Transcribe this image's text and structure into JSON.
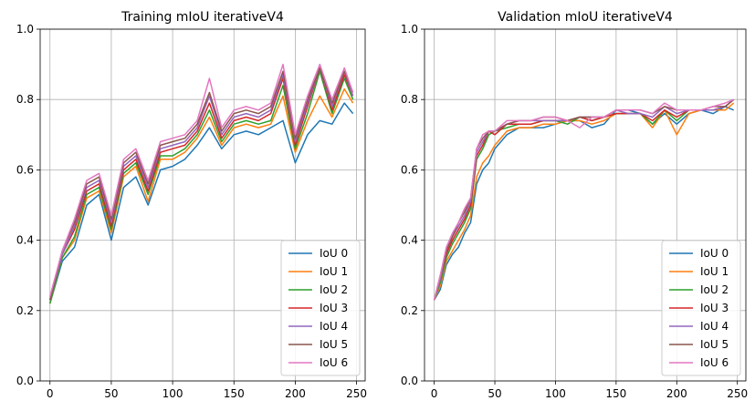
{
  "chart_data": [
    {
      "type": "line",
      "title": "Training mIoU iterativeV4",
      "xlabel": "",
      "ylabel": "",
      "xlim": [
        -8,
        257
      ],
      "ylim": [
        0,
        1
      ],
      "xticks": [
        0,
        50,
        100,
        150,
        200,
        250
      ],
      "yticks": [
        0.0,
        0.2,
        0.4,
        0.6,
        0.8,
        1.0
      ],
      "grid": true,
      "legend": "lower-right",
      "x": [
        0,
        10,
        20,
        30,
        40,
        50,
        60,
        70,
        80,
        90,
        100,
        110,
        120,
        130,
        140,
        150,
        160,
        170,
        180,
        190,
        200,
        210,
        220,
        230,
        240,
        247
      ],
      "series": [
        {
          "name": "IoU 0",
          "color": "#1f77b4",
          "values": [
            0.22,
            0.34,
            0.38,
            0.5,
            0.53,
            0.4,
            0.55,
            0.58,
            0.5,
            0.6,
            0.61,
            0.63,
            0.67,
            0.72,
            0.66,
            0.7,
            0.71,
            0.7,
            0.72,
            0.74,
            0.62,
            0.7,
            0.74,
            0.73,
            0.79,
            0.76
          ]
        },
        {
          "name": "IoU 1",
          "color": "#ff7f0e",
          "values": [
            0.22,
            0.35,
            0.4,
            0.52,
            0.54,
            0.42,
            0.58,
            0.61,
            0.51,
            0.63,
            0.63,
            0.65,
            0.69,
            0.75,
            0.67,
            0.72,
            0.73,
            0.72,
            0.73,
            0.81,
            0.65,
            0.74,
            0.81,
            0.75,
            0.83,
            0.79
          ]
        },
        {
          "name": "IoU 2",
          "color": "#2ca02c",
          "values": [
            0.22,
            0.35,
            0.41,
            0.53,
            0.55,
            0.43,
            0.59,
            0.62,
            0.53,
            0.64,
            0.64,
            0.66,
            0.7,
            0.77,
            0.68,
            0.73,
            0.74,
            0.73,
            0.74,
            0.84,
            0.66,
            0.76,
            0.88,
            0.76,
            0.86,
            0.8
          ]
        },
        {
          "name": "IoU 3",
          "color": "#d62728",
          "values": [
            0.23,
            0.36,
            0.43,
            0.54,
            0.56,
            0.44,
            0.6,
            0.63,
            0.54,
            0.65,
            0.66,
            0.67,
            0.71,
            0.79,
            0.69,
            0.74,
            0.75,
            0.74,
            0.76,
            0.86,
            0.67,
            0.78,
            0.89,
            0.77,
            0.87,
            0.81
          ]
        },
        {
          "name": "IoU 4",
          "color": "#9467bd",
          "values": [
            0.23,
            0.36,
            0.44,
            0.55,
            0.57,
            0.45,
            0.61,
            0.64,
            0.55,
            0.66,
            0.67,
            0.68,
            0.72,
            0.81,
            0.7,
            0.75,
            0.76,
            0.75,
            0.77,
            0.87,
            0.68,
            0.79,
            0.89,
            0.78,
            0.88,
            0.81
          ]
        },
        {
          "name": "IoU 5",
          "color": "#8c564b",
          "values": [
            0.23,
            0.37,
            0.45,
            0.56,
            0.58,
            0.46,
            0.62,
            0.65,
            0.56,
            0.67,
            0.68,
            0.69,
            0.73,
            0.82,
            0.71,
            0.76,
            0.77,
            0.76,
            0.78,
            0.88,
            0.69,
            0.8,
            0.89,
            0.79,
            0.88,
            0.82
          ]
        },
        {
          "name": "IoU 6",
          "color": "#e377c2",
          "values": [
            0.24,
            0.37,
            0.46,
            0.57,
            0.59,
            0.47,
            0.63,
            0.66,
            0.57,
            0.68,
            0.69,
            0.7,
            0.74,
            0.86,
            0.72,
            0.77,
            0.78,
            0.77,
            0.79,
            0.9,
            0.7,
            0.81,
            0.9,
            0.8,
            0.89,
            0.82
          ]
        }
      ]
    },
    {
      "type": "line",
      "title": "Validation mIoU iterativeV4",
      "xlabel": "",
      "ylabel": "",
      "xlim": [
        -8,
        257
      ],
      "ylim": [
        0,
        1
      ],
      "xticks": [
        0,
        50,
        100,
        150,
        200,
        250
      ],
      "yticks": [
        0.0,
        0.2,
        0.4,
        0.6,
        0.8,
        1.0
      ],
      "grid": true,
      "legend": "lower-right",
      "x": [
        0,
        5,
        10,
        15,
        20,
        25,
        30,
        35,
        40,
        45,
        50,
        60,
        70,
        80,
        90,
        100,
        110,
        120,
        130,
        140,
        150,
        160,
        170,
        180,
        190,
        200,
        210,
        220,
        230,
        240,
        247
      ],
      "series": [
        {
          "name": "IoU 0",
          "color": "#1f77b4",
          "values": [
            0.23,
            0.26,
            0.33,
            0.36,
            0.38,
            0.42,
            0.45,
            0.56,
            0.6,
            0.62,
            0.66,
            0.7,
            0.72,
            0.72,
            0.72,
            0.73,
            0.74,
            0.74,
            0.72,
            0.73,
            0.77,
            0.77,
            0.76,
            0.73,
            0.76,
            0.73,
            0.76,
            0.77,
            0.76,
            0.78,
            0.77
          ]
        },
        {
          "name": "IoU 1",
          "color": "#ff7f0e",
          "values": [
            0.23,
            0.27,
            0.34,
            0.37,
            0.4,
            0.43,
            0.47,
            0.58,
            0.62,
            0.64,
            0.67,
            0.71,
            0.72,
            0.72,
            0.73,
            0.73,
            0.74,
            0.74,
            0.73,
            0.74,
            0.76,
            0.76,
            0.76,
            0.72,
            0.77,
            0.7,
            0.76,
            0.77,
            0.77,
            0.77,
            0.79
          ]
        },
        {
          "name": "IoU 2",
          "color": "#2ca02c",
          "values": [
            0.23,
            0.28,
            0.35,
            0.39,
            0.42,
            0.45,
            0.49,
            0.63,
            0.66,
            0.7,
            0.71,
            0.72,
            0.73,
            0.73,
            0.74,
            0.74,
            0.73,
            0.75,
            0.74,
            0.75,
            0.76,
            0.76,
            0.76,
            0.73,
            0.77,
            0.74,
            0.77,
            0.77,
            0.77,
            0.78,
            0.8
          ]
        },
        {
          "name": "IoU 3",
          "color": "#d62728",
          "values": [
            0.23,
            0.29,
            0.36,
            0.4,
            0.43,
            0.46,
            0.5,
            0.64,
            0.67,
            0.71,
            0.7,
            0.73,
            0.73,
            0.73,
            0.74,
            0.74,
            0.74,
            0.75,
            0.74,
            0.75,
            0.76,
            0.76,
            0.76,
            0.74,
            0.77,
            0.75,
            0.77,
            0.77,
            0.77,
            0.78,
            0.8
          ]
        },
        {
          "name": "IoU 4",
          "color": "#9467bd",
          "values": [
            0.23,
            0.29,
            0.37,
            0.41,
            0.44,
            0.47,
            0.51,
            0.65,
            0.68,
            0.71,
            0.71,
            0.73,
            0.74,
            0.74,
            0.74,
            0.74,
            0.74,
            0.75,
            0.75,
            0.75,
            0.77,
            0.76,
            0.76,
            0.75,
            0.78,
            0.76,
            0.77,
            0.77,
            0.77,
            0.78,
            0.8
          ]
        },
        {
          "name": "IoU 5",
          "color": "#8c564b",
          "values": [
            0.23,
            0.3,
            0.37,
            0.41,
            0.45,
            0.48,
            0.52,
            0.66,
            0.69,
            0.71,
            0.71,
            0.73,
            0.74,
            0.74,
            0.75,
            0.75,
            0.74,
            0.75,
            0.75,
            0.75,
            0.77,
            0.77,
            0.77,
            0.76,
            0.78,
            0.77,
            0.77,
            0.77,
            0.78,
            0.78,
            0.8
          ]
        },
        {
          "name": "IoU 6",
          "color": "#e377c2",
          "values": [
            0.23,
            0.3,
            0.38,
            0.42,
            0.45,
            0.49,
            0.52,
            0.66,
            0.7,
            0.71,
            0.71,
            0.74,
            0.74,
            0.74,
            0.75,
            0.75,
            0.74,
            0.72,
            0.75,
            0.75,
            0.77,
            0.77,
            0.77,
            0.76,
            0.79,
            0.77,
            0.77,
            0.77,
            0.78,
            0.79,
            0.8
          ]
        }
      ]
    }
  ]
}
